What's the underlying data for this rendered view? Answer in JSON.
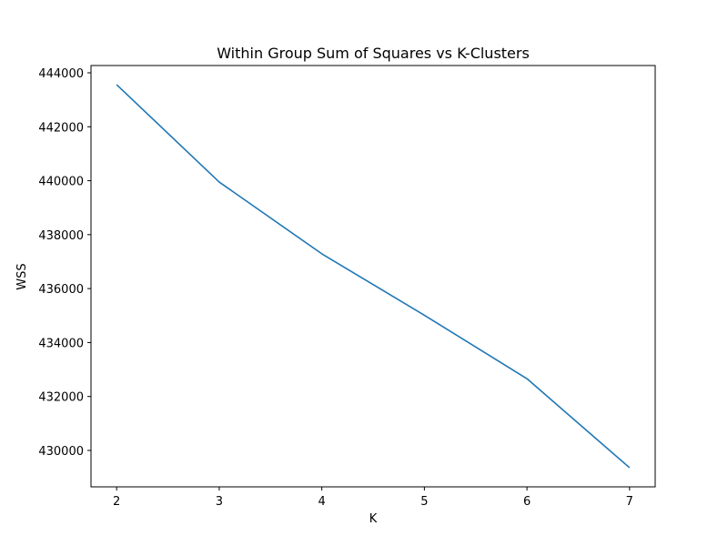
{
  "chart_data": {
    "type": "line",
    "title": "Within Group Sum of Squares vs K-Clusters",
    "xlabel": "K",
    "ylabel": "WSS",
    "x": [
      2,
      3,
      4,
      5,
      6,
      7
    ],
    "series": [
      {
        "values": [
          443560,
          439950,
          437290,
          435010,
          432660,
          429360
        ]
      }
    ],
    "xlim": [
      1.75,
      7.25
    ],
    "ylim": [
      428650,
      444270
    ],
    "xticks": [
      2,
      3,
      4,
      5,
      6,
      7
    ],
    "yticks": [
      430000,
      432000,
      434000,
      436000,
      438000,
      440000,
      442000,
      444000
    ],
    "grid": false,
    "line_color": "#1f77b4"
  }
}
